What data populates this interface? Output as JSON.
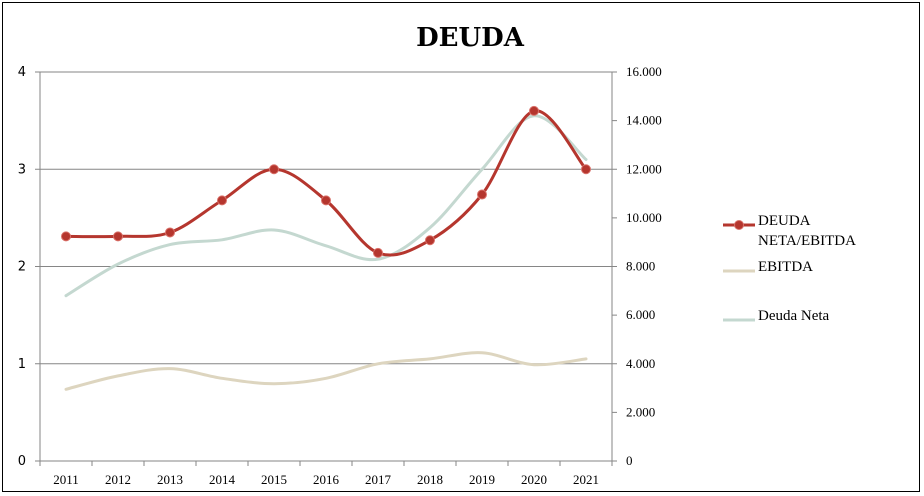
{
  "chart_data": {
    "type": "line",
    "title": "DEUDA",
    "categories": [
      "2011",
      "2012",
      "2013",
      "2014",
      "2015",
      "2016",
      "2017",
      "2018",
      "2019",
      "2020",
      "2021"
    ],
    "y_left": {
      "range": [
        0,
        4
      ],
      "ticks": [
        "0",
        "1",
        "2",
        "3",
        "4"
      ]
    },
    "y_right": {
      "range": [
        0,
        16000
      ],
      "ticks": [
        "0",
        "2.000",
        "4.000",
        "6.000",
        "8.000",
        "10.000",
        "12.000",
        "14.000",
        "16.000"
      ]
    },
    "grid": "horizontal",
    "legend_position": "right",
    "series": [
      {
        "name": "DEUDA NETA/EBITDA",
        "axis": "left",
        "color": "#b5362e",
        "markers": true,
        "values": [
          2.31,
          2.31,
          2.35,
          2.68,
          3.0,
          2.68,
          2.14,
          2.27,
          2.74,
          3.6,
          3.0
        ]
      },
      {
        "name": "EBITDA",
        "axis": "right",
        "color": "#ddd5bf",
        "markers": false,
        "values": [
          2950,
          3500,
          3800,
          3400,
          3180,
          3400,
          4000,
          4200,
          4450,
          3960,
          4200
        ]
      },
      {
        "name": "Deuda Neta",
        "axis": "right",
        "color": "#c4d8d0",
        "markers": false,
        "values": [
          6800,
          8100,
          8900,
          9100,
          9500,
          8850,
          8300,
          9600,
          12000,
          14200,
          12400
        ]
      }
    ],
    "legend_labels": [
      [
        "DEUDA",
        "NETA/EBITDA"
      ],
      [
        "EBITDA"
      ],
      [
        "Deuda Neta"
      ]
    ]
  }
}
